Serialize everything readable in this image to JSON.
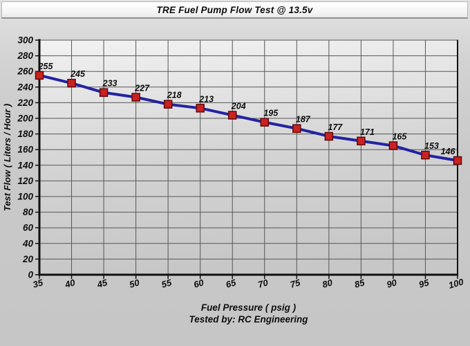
{
  "title": "TRE Fuel Pump Flow Test @ 13.5v",
  "chart_data": {
    "type": "line",
    "x": [
      35,
      40,
      45,
      50,
      55,
      60,
      65,
      70,
      75,
      80,
      85,
      90,
      95,
      100
    ],
    "series": [
      {
        "name": "Test Flow",
        "values": [
          255,
          245,
          233,
          227,
          218,
          213,
          204,
          195,
          187,
          177,
          171,
          165,
          153,
          146
        ]
      }
    ],
    "title": "TRE Fuel Pump Flow Test @ 13.5v",
    "xlabel": "Fuel Pressure ( psig )",
    "ylabel": "Test Flow ( Liters / Hour )",
    "footer": "Tested by: RC Engineering",
    "xlim": [
      35,
      100
    ],
    "ylim": [
      0,
      300
    ],
    "x_tick_step": 5,
    "y_tick_step": 20,
    "grid": true,
    "legend": "none",
    "point_labels_shown": true,
    "colors": {
      "line": "#2323a2",
      "marker_fill": "#cc2121",
      "marker_stroke": "#5c0a0a",
      "grid": "#565656",
      "axis": "#101010",
      "plot_bg_top": "#f2f2f2",
      "plot_bg_bottom": "#c7c7c7"
    }
  }
}
